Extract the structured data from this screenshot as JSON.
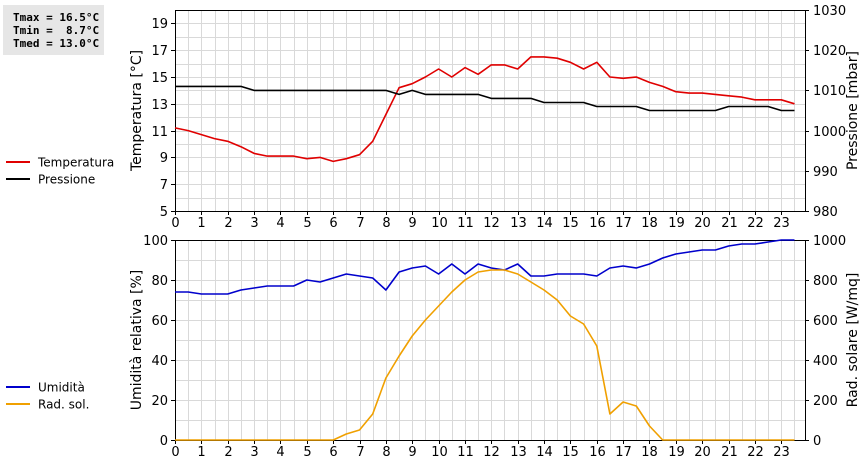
{
  "stats": {
    "tmax": "Tmax = 16.5°C",
    "tmin": "Tmin =  8.7°C",
    "tmed": "Tmed = 13.0°C"
  },
  "chart_data": [
    {
      "type": "line",
      "x_ticks": [
        "0",
        "1",
        "2",
        "3",
        "4",
        "5",
        "6",
        "7",
        "8",
        "9",
        "10",
        "11",
        "12",
        "13",
        "14",
        "15",
        "16",
        "17",
        "18",
        "19",
        "20",
        "21",
        "22",
        "23"
      ],
      "xlim": [
        0,
        23.9
      ],
      "y_left": {
        "label": "Temperatura [°C]",
        "ticks": [
          "5",
          "7",
          "9",
          "11",
          "13",
          "15",
          "17",
          "19"
        ],
        "ylim": [
          5,
          20
        ]
      },
      "y_right": {
        "label": "Pressione [mbar]",
        "ticks": [
          "980",
          "990",
          "1000",
          "1010",
          "1020",
          "1030"
        ],
        "ylim": [
          980,
          1030
        ]
      },
      "grid": true,
      "legend_position": "left",
      "series": [
        {
          "name": "Temperatura",
          "color": "#e00000",
          "axis": "left",
          "x": [
            0,
            0.5,
            1,
            1.5,
            2,
            2.5,
            3,
            3.5,
            4,
            4.5,
            5,
            5.5,
            6,
            6.5,
            7,
            7.5,
            8,
            8.5,
            9,
            9.5,
            10,
            10.5,
            11,
            11.5,
            12,
            12.5,
            13,
            13.5,
            14,
            14.5,
            15,
            15.5,
            16,
            16.5,
            17,
            17.5,
            18,
            18.5,
            19,
            19.5,
            20,
            20.5,
            21,
            21.5,
            22,
            22.5,
            23,
            23.5
          ],
          "values": [
            11.2,
            11.0,
            10.7,
            10.4,
            10.2,
            9.8,
            9.3,
            9.1,
            9.1,
            9.1,
            8.9,
            9.0,
            8.7,
            8.9,
            9.2,
            10.2,
            12.2,
            14.2,
            14.5,
            15.0,
            15.6,
            15.0,
            15.7,
            15.2,
            15.9,
            15.9,
            15.6,
            16.5,
            16.5,
            16.4,
            16.1,
            15.6,
            16.1,
            15.0,
            14.9,
            15.0,
            14.6,
            14.3,
            13.9,
            13.8,
            13.8,
            13.7,
            13.6,
            13.5,
            13.3,
            13.3,
            13.3,
            13.0
          ]
        },
        {
          "name": "Pressione",
          "color": "#000000",
          "axis": "right",
          "x": [
            0,
            0.5,
            1,
            1.5,
            2,
            2.5,
            3,
            3.5,
            4,
            4.5,
            5,
            5.5,
            6,
            6.5,
            7,
            7.5,
            8,
            8.5,
            9,
            9.5,
            10,
            10.5,
            11,
            11.5,
            12,
            12.5,
            13,
            13.5,
            14,
            14.5,
            15,
            15.5,
            16,
            16.5,
            17,
            17.5,
            18,
            18.5,
            19,
            19.5,
            20,
            20.5,
            21,
            21.5,
            22,
            22.5,
            23,
            23.5
          ],
          "values": [
            1011,
            1011,
            1011,
            1011,
            1011,
            1011,
            1010,
            1010,
            1010,
            1010,
            1010,
            1010,
            1010,
            1010,
            1010,
            1010,
            1010,
            1009,
            1010,
            1009,
            1009,
            1009,
            1009,
            1009,
            1008,
            1008,
            1008,
            1008,
            1007,
            1007,
            1007,
            1007,
            1006,
            1006,
            1006,
            1006,
            1005,
            1005,
            1005,
            1005,
            1005,
            1005,
            1006,
            1006,
            1006,
            1006,
            1005,
            1005
          ]
        }
      ]
    },
    {
      "type": "line",
      "x_ticks": [
        "0",
        "1",
        "2",
        "3",
        "4",
        "5",
        "6",
        "7",
        "8",
        "9",
        "10",
        "11",
        "12",
        "13",
        "14",
        "15",
        "16",
        "17",
        "18",
        "19",
        "20",
        "21",
        "22",
        "23"
      ],
      "xlim": [
        0,
        23.9
      ],
      "y_left": {
        "label": "Umidità relativa [%]",
        "ticks": [
          "0",
          "20",
          "40",
          "60",
          "80",
          "100"
        ],
        "ylim": [
          0,
          100
        ]
      },
      "y_right": {
        "label": "Rad. solare [W/mq]",
        "ticks": [
          "0",
          "200",
          "400",
          "600",
          "800",
          "1000"
        ],
        "ylim": [
          0,
          1000
        ]
      },
      "grid": true,
      "legend_position": "left",
      "series": [
        {
          "name": "Umidità",
          "color": "#0000cc",
          "axis": "left",
          "x": [
            0,
            0.5,
            1,
            1.5,
            2,
            2.5,
            3,
            3.5,
            4,
            4.5,
            5,
            5.5,
            6,
            6.5,
            7,
            7.5,
            8,
            8.5,
            9,
            9.5,
            10,
            10.5,
            11,
            11.5,
            12,
            12.5,
            13,
            13.5,
            14,
            14.5,
            15,
            15.5,
            16,
            16.5,
            17,
            17.5,
            18,
            18.5,
            19,
            19.5,
            20,
            20.5,
            21,
            21.5,
            22,
            22.5,
            23,
            23.5
          ],
          "values": [
            74,
            74,
            73,
            73,
            73,
            75,
            76,
            77,
            77,
            77,
            80,
            79,
            81,
            83,
            82,
            81,
            75,
            84,
            86,
            87,
            83,
            88,
            83,
            88,
            86,
            85,
            88,
            82,
            82,
            83,
            83,
            83,
            82,
            86,
            87,
            86,
            88,
            91,
            93,
            94,
            95,
            95,
            97,
            98,
            98,
            99,
            100,
            100
          ]
        },
        {
          "name": "Rad. sol.",
          "color": "#f0a000",
          "axis": "right",
          "x": [
            0,
            0.5,
            1,
            1.5,
            2,
            2.5,
            3,
            3.5,
            4,
            4.5,
            5,
            5.5,
            6,
            6.5,
            7,
            7.5,
            8,
            8.5,
            9,
            9.5,
            10,
            10.5,
            11,
            11.5,
            12,
            12.5,
            13,
            13.5,
            14,
            14.5,
            15,
            15.5,
            16,
            16.5,
            17,
            17.5,
            18,
            18.5,
            19,
            19.5,
            20,
            20.5,
            21,
            21.5,
            22,
            22.5,
            23,
            23.5
          ],
          "values": [
            0,
            0,
            0,
            0,
            0,
            0,
            0,
            0,
            0,
            0,
            0,
            0,
            0,
            30,
            50,
            130,
            310,
            420,
            520,
            600,
            670,
            740,
            800,
            840,
            850,
            850,
            830,
            790,
            750,
            700,
            620,
            580,
            470,
            130,
            190,
            170,
            70,
            0,
            0,
            0,
            0,
            0,
            0,
            0,
            0,
            0,
            0,
            0
          ]
        }
      ]
    }
  ]
}
